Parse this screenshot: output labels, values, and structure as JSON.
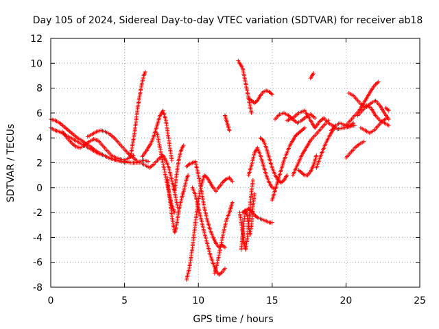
{
  "chart_data": {
    "type": "scatter",
    "title": "Day 105 of 2024, Sidereal Day-to-day VTEC variation (SDTVAR) for receiver ab18",
    "xlabel": "GPS time / hours",
    "ylabel": "SDTVAR / TECUs",
    "xlim": [
      0,
      25
    ],
    "ylim": [
      -8,
      12
    ],
    "xticks": [
      "0",
      "5",
      "10",
      "15",
      "20",
      "25"
    ],
    "yticks": [
      "-8",
      "-6",
      "-4",
      "-2",
      "0",
      "2",
      "4",
      "6",
      "8",
      "10",
      "12"
    ],
    "grid": true,
    "marker": "+",
    "color": "#ff0000",
    "series": [
      {
        "x": [
          0.0,
          0.3,
          0.6,
          0.9,
          1.2,
          1.5,
          1.8,
          2.1,
          2.4,
          2.7,
          3.0,
          3.3,
          3.6,
          3.9,
          4.2,
          4.5,
          4.8,
          5.1,
          5.4,
          5.7,
          6.0,
          6.3,
          6.6
        ],
        "y": [
          5.5,
          5.4,
          5.2,
          4.9,
          4.6,
          4.3,
          4.0,
          3.8,
          3.5,
          3.3,
          3.0,
          2.8,
          2.6,
          2.4,
          2.3,
          2.2,
          2.1,
          2.1,
          2.0,
          2.0,
          2.1,
          2.2,
          2.1
        ]
      },
      {
        "x": [
          0.0,
          0.3,
          0.6,
          0.9,
          1.2,
          1.5,
          1.8,
          2.1,
          2.4,
          2.7,
          3.0,
          3.3,
          3.6,
          3.9,
          4.2,
          4.5,
          4.8,
          5.1
        ],
        "y": [
          4.8,
          4.6,
          4.5,
          4.3,
          4.1,
          3.9,
          3.7,
          3.5,
          3.3,
          3.1,
          2.9,
          2.7,
          2.6,
          2.4,
          2.3,
          2.2,
          2.1,
          2.0
        ]
      },
      {
        "x": [
          0.8,
          1.1,
          1.4,
          1.7,
          2.0,
          2.3,
          2.6,
          2.9,
          3.2,
          3.5,
          3.8,
          4.1,
          4.4,
          4.7,
          5.0,
          5.3,
          5.6
        ],
        "y": [
          4.5,
          4.0,
          3.6,
          3.3,
          3.2,
          3.4,
          3.7,
          3.9,
          3.8,
          3.4,
          3.0,
          2.6,
          2.4,
          2.3,
          2.2,
          2.4,
          2.6
        ]
      },
      {
        "x": [
          2.5,
          2.8,
          3.1,
          3.4,
          3.7,
          4.0,
          4.3,
          4.6,
          4.9,
          5.2,
          5.5,
          5.8
        ],
        "y": [
          4.1,
          4.3,
          4.5,
          4.6,
          4.5,
          4.3,
          4.0,
          3.6,
          3.2,
          2.8,
          2.5,
          2.2
        ]
      },
      {
        "x": [
          5.4,
          5.55,
          5.7,
          5.8,
          5.9,
          6.0,
          6.1,
          6.2,
          6.3,
          6.4
        ],
        "y": [
          2.5,
          3.5,
          4.6,
          5.6,
          6.5,
          7.2,
          7.9,
          8.5,
          9.0,
          9.3
        ]
      },
      {
        "x": [
          6.2,
          6.5,
          6.8,
          7.0,
          7.2,
          7.4,
          7.6,
          7.8,
          7.9,
          8.0,
          8.1,
          8.2
        ],
        "y": [
          2.5,
          3.0,
          3.6,
          4.2,
          5.0,
          5.8,
          6.2,
          5.4,
          4.6,
          3.8,
          3.0,
          2.2
        ]
      },
      {
        "x": [
          5.8,
          6.1,
          6.4,
          6.7,
          7.0,
          7.3,
          7.6,
          7.8,
          8.0,
          8.2,
          8.4,
          8.6
        ],
        "y": [
          2.0,
          2.0,
          1.8,
          1.6,
          1.9,
          2.3,
          2.6,
          2.2,
          1.6,
          0.6,
          -0.4,
          -1.6
        ]
      },
      {
        "x": [
          7.2,
          7.4,
          7.6,
          7.8,
          8.0,
          8.2,
          8.4
        ],
        "y": [
          4.4,
          3.2,
          2.0,
          0.8,
          -0.4,
          -1.4,
          -2.0
        ]
      },
      {
        "x": [
          7.9,
          8.0,
          8.1,
          8.2,
          8.3,
          8.4,
          8.5,
          8.6,
          8.7,
          8.8,
          8.9,
          9.0,
          9.1,
          9.2,
          9.3
        ],
        "y": [
          0.8,
          -0.3,
          -1.2,
          -2.2,
          -3.0,
          -3.6,
          -3.2,
          -2.4,
          -1.7,
          -1.2,
          -0.7,
          -0.3,
          0.2,
          0.7,
          1.0
        ]
      },
      {
        "x": [
          8.4,
          8.5,
          8.6,
          8.7,
          8.8,
          8.9,
          9.0
        ],
        "y": [
          -0.2,
          0.8,
          1.7,
          2.4,
          2.9,
          3.2,
          3.4
        ]
      },
      {
        "x": [
          9.2,
          9.4,
          9.6,
          9.8,
          10.0,
          10.2,
          10.4,
          10.6,
          10.8,
          11.0,
          11.2,
          11.4,
          11.6,
          11.8
        ],
        "y": [
          1.7,
          1.9,
          2.0,
          2.1,
          1.0,
          -0.2,
          -1.6,
          -2.6,
          -3.4,
          -4.0,
          -4.5,
          -4.8,
          -4.6,
          -4.8
        ]
      },
      {
        "x": [
          9.2,
          9.4,
          9.6,
          9.8,
          10.0,
          10.2,
          10.4,
          10.6,
          10.8,
          11.0,
          11.2
        ],
        "y": [
          -7.4,
          -6.4,
          -4.8,
          -2.8,
          -1.0,
          0.2,
          1.0,
          0.8,
          0.4,
          0.0,
          -0.3
        ]
      },
      {
        "x": [
          9.6,
          9.8,
          10.0,
          10.2,
          10.4,
          10.6,
          10.8,
          11.0,
          11.2,
          11.4,
          11.6,
          11.8
        ],
        "y": [
          0.0,
          -0.6,
          -1.6,
          -2.6,
          -3.6,
          -4.5,
          -5.4,
          -6.1,
          -6.7,
          -7.0,
          -6.8,
          -6.5
        ]
      },
      {
        "x": [
          11.1,
          11.3,
          11.5,
          11.7,
          11.9,
          12.1,
          12.2,
          12.3
        ],
        "y": [
          -6.9,
          -6.0,
          -4.8,
          -3.6,
          -2.6,
          -2.0,
          -1.6,
          -1.2
        ]
      },
      {
        "x": [
          11.3,
          11.5,
          11.7,
          11.9,
          12.1,
          12.3
        ],
        "y": [
          -0.1,
          0.2,
          0.5,
          0.7,
          0.8,
          0.5
        ]
      },
      {
        "x": [
          11.8,
          11.9,
          12.0,
          12.1
        ],
        "y": [
          5.8,
          5.4,
          5.0,
          4.6
        ]
      },
      {
        "x": [
          12.7,
          12.85,
          13.0,
          13.1,
          13.2,
          13.3,
          13.4,
          13.5,
          13.6
        ],
        "y": [
          10.2,
          9.9,
          9.6,
          9.0,
          8.4,
          7.8,
          7.2,
          6.6,
          6.0
        ]
      },
      {
        "x": [
          13.4,
          13.6,
          13.8,
          14.0,
          14.2,
          14.4,
          14.6,
          14.8,
          15.0
        ],
        "y": [
          7.2,
          7.0,
          6.8,
          7.0,
          7.4,
          7.7,
          7.8,
          7.7,
          7.5
        ]
      },
      {
        "x": [
          12.8,
          12.9,
          13.0,
          13.1,
          13.2,
          13.3,
          13.4,
          13.5,
          13.6,
          13.7
        ],
        "y": [
          -2.0,
          -2.8,
          -3.6,
          -4.4,
          -5.0,
          -4.2,
          -3.0,
          -1.6,
          -0.3,
          0.6
        ]
      },
      {
        "x": [
          12.9,
          13.0,
          13.1,
          13.2,
          13.3,
          13.4,
          13.5,
          13.6,
          13.7,
          13.8
        ],
        "y": [
          -5.0,
          -3.8,
          -2.6,
          -1.8,
          -2.2,
          -3.0,
          -3.8,
          -3.0,
          -1.5,
          -0.5
        ]
      },
      {
        "x": [
          13.4,
          13.6,
          13.8,
          14.0,
          14.2,
          14.4,
          14.6,
          14.8,
          15.0,
          15.2
        ],
        "y": [
          1.0,
          1.8,
          2.8,
          3.2,
          2.6,
          1.8,
          1.0,
          0.4,
          0.0,
          -0.1
        ]
      },
      {
        "x": [
          13.0,
          13.2,
          13.4,
          13.6,
          13.8,
          14.0,
          14.2,
          14.4,
          14.6,
          14.8,
          15.0
        ],
        "y": [
          -2.0,
          -1.8,
          -1.7,
          -1.9,
          -2.2,
          -2.4,
          -2.5,
          -2.6,
          -2.7,
          -2.8,
          -2.8
        ]
      },
      {
        "x": [
          14.2,
          14.4,
          14.6,
          14.8,
          15.0,
          15.2,
          15.4,
          15.6,
          15.8,
          16.0
        ],
        "y": [
          4.0,
          3.8,
          3.2,
          2.4,
          1.6,
          1.0,
          0.6,
          0.4,
          0.6,
          1.0
        ]
      },
      {
        "x": [
          15.0,
          15.2,
          15.4,
          15.6,
          15.8,
          16.0,
          16.2,
          16.4,
          16.6,
          16.8,
          17.0,
          17.2
        ],
        "y": [
          -1.0,
          -0.2,
          0.6,
          1.4,
          2.2,
          2.8,
          3.4,
          3.8,
          4.2,
          4.4,
          4.6,
          4.8
        ]
      },
      {
        "x": [
          15.2,
          15.5,
          15.8,
          16.1,
          16.4,
          16.7,
          17.0,
          17.3,
          17.6,
          17.9
        ],
        "y": [
          5.5,
          5.9,
          6.0,
          5.8,
          5.5,
          5.2,
          5.4,
          5.7,
          5.9,
          5.6
        ]
      },
      {
        "x": [
          16.0,
          16.4,
          16.8,
          17.2,
          17.6,
          17.9,
          18.2,
          18.5,
          18.8,
          19.1,
          19.4,
          19.8,
          20.2,
          20.6
        ],
        "y": [
          5.4,
          5.6,
          6.0,
          6.2,
          5.4,
          4.8,
          5.3,
          5.6,
          5.2,
          5.0,
          4.7,
          4.8,
          4.9,
          5.0
        ]
      },
      {
        "x": [
          16.4,
          16.7,
          17.0,
          17.3,
          17.6,
          17.9,
          18.2,
          18.5,
          18.8
        ],
        "y": [
          1.0,
          1.8,
          2.6,
          3.2,
          3.8,
          4.2,
          4.6,
          5.0,
          5.4
        ]
      },
      {
        "x": [
          16.8,
          17.0,
          17.2,
          17.4,
          17.6,
          17.8,
          18.0
        ],
        "y": [
          1.4,
          1.2,
          1.0,
          1.0,
          1.3,
          1.8,
          2.6
        ]
      },
      {
        "x": [
          17.6,
          17.7,
          17.8
        ],
        "y": [
          8.8,
          9.0,
          9.2
        ]
      },
      {
        "x": [
          18.0,
          18.3,
          18.6,
          18.9,
          19.2
        ],
        "y": [
          1.6,
          2.6,
          3.5,
          4.2,
          4.8
        ]
      },
      {
        "x": [
          19.0,
          19.3,
          19.6,
          19.9,
          20.2,
          20.5
        ],
        "y": [
          4.6,
          5.0,
          5.2,
          5.0,
          4.9,
          5.2
        ]
      },
      {
        "x": [
          20.0,
          20.3,
          20.6,
          20.9,
          21.2,
          21.5,
          21.8,
          22.0,
          22.2
        ],
        "y": [
          5.0,
          5.4,
          5.8,
          6.2,
          6.8,
          7.4,
          8.0,
          8.3,
          8.5
        ]
      },
      {
        "x": [
          20.2,
          20.5,
          20.8,
          21.1,
          21.4,
          21.7,
          22.0,
          22.3,
          22.6,
          22.9
        ],
        "y": [
          7.6,
          7.4,
          7.0,
          6.6,
          6.5,
          6.8,
          7.0,
          6.6,
          6.0,
          5.5
        ]
      },
      {
        "x": [
          20.8,
          21.1,
          21.4,
          21.7,
          22.0,
          22.3,
          22.6,
          22.9
        ],
        "y": [
          5.8,
          6.2,
          6.6,
          6.4,
          5.8,
          5.4,
          5.2,
          5.0
        ]
      },
      {
        "x": [
          20.0,
          20.3,
          20.6,
          20.9,
          21.2
        ],
        "y": [
          2.4,
          2.8,
          3.2,
          3.5,
          3.7
        ]
      },
      {
        "x": [
          21.0,
          21.3,
          21.6,
          21.9,
          22.2,
          22.5,
          22.8
        ],
        "y": [
          4.8,
          4.6,
          4.4,
          4.6,
          5.0,
          5.4,
          5.6
        ]
      },
      {
        "x": [
          22.7,
          22.9
        ],
        "y": [
          6.4,
          6.2
        ]
      }
    ]
  }
}
